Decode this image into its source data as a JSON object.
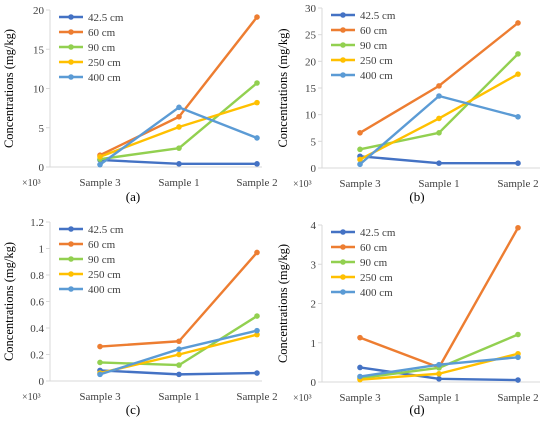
{
  "figure": {
    "multiplier": "×10³",
    "ylabel": "Concentrations (mg/kg)"
  },
  "chart_data": [
    {
      "type": "line",
      "panel_label": "(a)",
      "categories": [
        "Sample 3",
        "Sample 1",
        "Sample 2"
      ],
      "ylabel": "Concentrations (mg/kg)",
      "ylim": [
        0,
        20
      ],
      "yticks": [
        "0",
        "5",
        "10",
        "15",
        "20"
      ],
      "legend_position": "top-left",
      "series": [
        {
          "name": "42.5 cm",
          "color": "#4472C4",
          "values": [
            0.9,
            0.4,
            0.4
          ]
        },
        {
          "name": "60 cm",
          "color": "#ED7D31",
          "values": [
            1.5,
            6.4,
            19.1
          ]
        },
        {
          "name": "90 cm",
          "color": "#92D050",
          "values": [
            1.0,
            2.4,
            10.7
          ]
        },
        {
          "name": "250 cm",
          "color": "#FFC000",
          "values": [
            1.3,
            5.1,
            8.2
          ]
        },
        {
          "name": "400 cm",
          "color": "#5B9BD5",
          "values": [
            0.3,
            7.6,
            3.7
          ]
        }
      ]
    },
    {
      "type": "line",
      "panel_label": "(b)",
      "categories": [
        "Sample 3",
        "Sample 1",
        "Sample 2"
      ],
      "ylabel": "Concentrations (mg/kg)",
      "ylim": [
        0,
        30
      ],
      "yticks": [
        "0",
        "5",
        "10",
        "15",
        "20",
        "25",
        "30"
      ],
      "legend_position": "top-left",
      "series": [
        {
          "name": "42.5 cm",
          "color": "#4472C4",
          "values": [
            2.2,
            0.9,
            0.9
          ]
        },
        {
          "name": "60 cm",
          "color": "#ED7D31",
          "values": [
            6.6,
            15.4,
            27.2
          ]
        },
        {
          "name": "90 cm",
          "color": "#92D050",
          "values": [
            3.5,
            6.6,
            21.4
          ]
        },
        {
          "name": "250 cm",
          "color": "#FFC000",
          "values": [
            1.6,
            9.3,
            17.6
          ]
        },
        {
          "name": "400 cm",
          "color": "#5B9BD5",
          "values": [
            0.7,
            13.5,
            9.6
          ]
        }
      ]
    },
    {
      "type": "line",
      "panel_label": "(c)",
      "categories": [
        "Sample 3",
        "Sample 1",
        "Sample 2"
      ],
      "ylabel": "Concentrations (mg/kg)",
      "ylim": [
        0,
        1.2
      ],
      "yticks": [
        "0",
        "0.2",
        "0.4",
        "0.6",
        "0.8",
        "1",
        "1.2"
      ],
      "legend_position": "top-left",
      "series": [
        {
          "name": "42.5 cm",
          "color": "#4472C4",
          "values": [
            0.08,
            0.05,
            0.06
          ]
        },
        {
          "name": "60 cm",
          "color": "#ED7D31",
          "values": [
            0.26,
            0.3,
            0.97
          ]
        },
        {
          "name": "90 cm",
          "color": "#92D050",
          "values": [
            0.14,
            0.12,
            0.49
          ]
        },
        {
          "name": "250 cm",
          "color": "#FFC000",
          "values": [
            0.06,
            0.2,
            0.35
          ]
        },
        {
          "name": "400 cm",
          "color": "#5B9BD5",
          "values": [
            0.05,
            0.24,
            0.38
          ]
        }
      ]
    },
    {
      "type": "line",
      "panel_label": "(d)",
      "categories": [
        "Sample 3",
        "Sample 1",
        "Sample 2"
      ],
      "ylabel": "Concentrations (mg/kg)",
      "ylim": [
        0,
        4
      ],
      "yticks": [
        "0",
        "1",
        "2",
        "3",
        "4"
      ],
      "legend_position": "top-left",
      "series": [
        {
          "name": "42.5 cm",
          "color": "#4472C4",
          "values": [
            0.37,
            0.08,
            0.05
          ]
        },
        {
          "name": "60 cm",
          "color": "#ED7D31",
          "values": [
            1.13,
            0.37,
            3.93
          ]
        },
        {
          "name": "90 cm",
          "color": "#92D050",
          "values": [
            0.1,
            0.36,
            1.21
          ]
        },
        {
          "name": "250 cm",
          "color": "#FFC000",
          "values": [
            0.06,
            0.21,
            0.72
          ]
        },
        {
          "name": "400 cm",
          "color": "#5B9BD5",
          "values": [
            0.14,
            0.44,
            0.63
          ]
        }
      ]
    }
  ]
}
